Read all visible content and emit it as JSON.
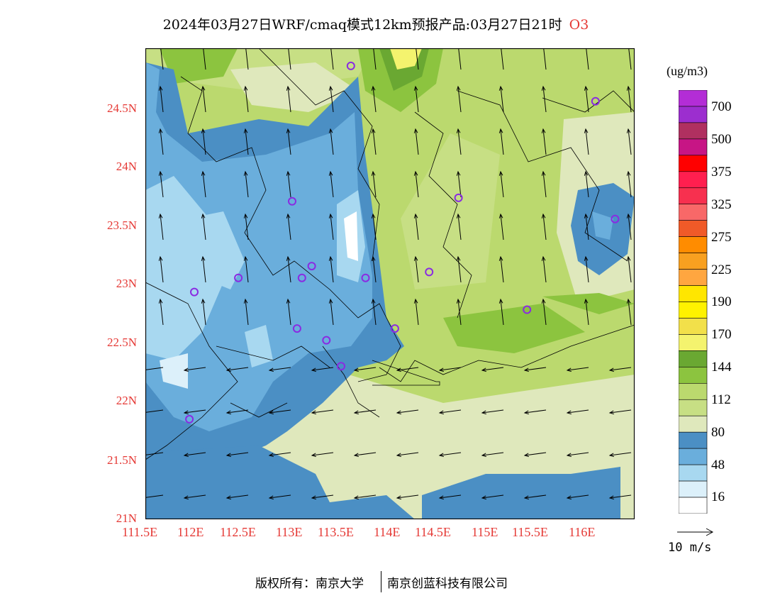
{
  "title": {
    "text": "2024年03月27日WRF/cmaq模式12km预报产品:03月27日21时",
    "species": "O3"
  },
  "axes": {
    "lat_labels": [
      "24.5N",
      "24N",
      "23.5N",
      "23N",
      "22.5N",
      "22N",
      "21.5N",
      "21N"
    ],
    "lon_labels": [
      "111.5E",
      "112E",
      "112.5E",
      "113E",
      "113.5E",
      "114E",
      "114.5E",
      "115E",
      "115.5E",
      "116E"
    ]
  },
  "legend": {
    "unit": "(ug/m3)",
    "labels": [
      "700",
      "500",
      "375",
      "325",
      "275",
      "225",
      "190",
      "170",
      "144",
      "112",
      "80",
      "48",
      "16"
    ],
    "colors": [
      "#b32dd6",
      "#9c2ecf",
      "#b03060",
      "#c71585",
      "#ff0000",
      "#ff1f4f",
      "#f7304f",
      "#f86868",
      "#f05a28",
      "#ff8c00",
      "#f8a020",
      "#ffa640",
      "#ffe600",
      "#fff200",
      "#f2e04a",
      "#f4f36e",
      "#6aa832",
      "#8cc43f",
      "#bbd96e",
      "#c7df84",
      "#dfe8bc",
      "#4b8fc4",
      "#6aaedc",
      "#a8d8f0",
      "#dcf0fa",
      "#ffffff"
    ]
  },
  "wind_scale": {
    "label": "10 m/s"
  },
  "footer": {
    "left": "版权所有：南京大学",
    "right": "南京创蓝科技有限公司"
  },
  "station_markers": [
    {
      "lon": 113.6,
      "lat": 24.85
    },
    {
      "lon": 116.1,
      "lat": 24.55
    },
    {
      "lon": 113.0,
      "lat": 23.7
    },
    {
      "lon": 114.7,
      "lat": 23.73
    },
    {
      "lon": 116.3,
      "lat": 23.55
    },
    {
      "lon": 112.45,
      "lat": 23.05
    },
    {
      "lon": 113.1,
      "lat": 23.05
    },
    {
      "lon": 113.2,
      "lat": 23.15
    },
    {
      "lon": 113.75,
      "lat": 23.05
    },
    {
      "lon": 114.4,
      "lat": 23.1
    },
    {
      "lon": 112.0,
      "lat": 22.93
    },
    {
      "lon": 115.4,
      "lat": 22.78
    },
    {
      "lon": 113.05,
      "lat": 22.62
    },
    {
      "lon": 114.05,
      "lat": 22.62
    },
    {
      "lon": 113.35,
      "lat": 22.52
    },
    {
      "lon": 113.5,
      "lat": 22.3
    },
    {
      "lon": 111.95,
      "lat": 21.85
    }
  ],
  "map_extent": {
    "lon_min": 111.5,
    "lon_max": 116.5,
    "lat_min": 21,
    "lat_max": 25
  }
}
